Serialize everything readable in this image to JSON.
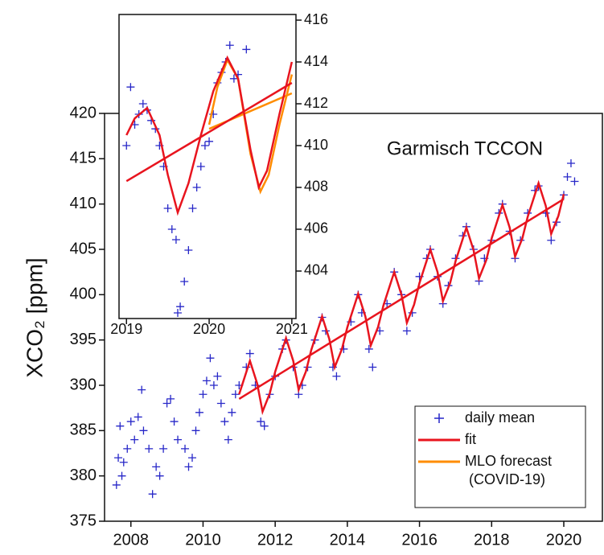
{
  "chart_data": [
    {
      "type": "scatter-line",
      "title": "Garmisch TCCON",
      "y_label": "XCO₂ [ppm]",
      "xlim": [
        2007.27,
        2021.07
      ],
      "xticks": [
        2008,
        2010,
        2012,
        2014,
        2016,
        2018,
        2020
      ],
      "ylim": [
        375,
        420
      ],
      "yticks": [
        375,
        380,
        385,
        390,
        395,
        400,
        405,
        410,
        415,
        420
      ],
      "legend": "lower right",
      "series": [
        {
          "name": "daily mean",
          "kind": "scatter",
          "color": "#2727c8",
          "x": [
            2007.6,
            2007.65,
            2007.7,
            2007.75,
            2007.8,
            2007.9,
            2008.0,
            2008.1,
            2008.2,
            2008.3,
            2008.35,
            2008.5,
            2008.6,
            2008.7,
            2008.8,
            2008.9,
            2009.0,
            2009.1,
            2009.2,
            2009.3,
            2009.5,
            2009.6,
            2009.7,
            2009.8,
            2009.9,
            2010.0,
            2010.1,
            2010.2,
            2010.3,
            2010.4,
            2010.5,
            2010.6,
            2010.7,
            2010.8,
            2010.9,
            2011.0,
            2011.2,
            2011.3,
            2011.45,
            2011.6,
            2011.7,
            2011.85,
            2012.0,
            2012.2,
            2012.3,
            2012.5,
            2012.65,
            2012.75,
            2012.9,
            2013.1,
            2013.3,
            2013.4,
            2013.6,
            2013.7,
            2013.9,
            2014.1,
            2014.3,
            2014.4,
            2014.6,
            2014.7,
            2014.9,
            2015.1,
            2015.3,
            2015.5,
            2015.65,
            2015.8,
            2016.0,
            2016.2,
            2016.3,
            2016.5,
            2016.65,
            2016.8,
            2017.0,
            2017.2,
            2017.3,
            2017.5,
            2017.65,
            2017.8,
            2018.0,
            2018.2,
            2018.3,
            2018.5,
            2018.65,
            2018.8,
            2019.0,
            2019.2,
            2019.3,
            2019.5,
            2019.65,
            2019.8,
            2020.0,
            2020.1,
            2020.2,
            2020.3
          ],
          "values": [
            379,
            382,
            385.5,
            380,
            381.5,
            383,
            386,
            384,
            386.5,
            389.5,
            385,
            383,
            378,
            381,
            380,
            383,
            388,
            388.5,
            386,
            384,
            383,
            381,
            382,
            385,
            387,
            389,
            390.5,
            393,
            390,
            391,
            388,
            386,
            384,
            387,
            389,
            390,
            392,
            393.5,
            390,
            386,
            385.5,
            389,
            391,
            394,
            395,
            392,
            389,
            390,
            392,
            395,
            397.5,
            396,
            392,
            391,
            394,
            397,
            400,
            398,
            394,
            392,
            396,
            399,
            402.5,
            400,
            396,
            398,
            402,
            404,
            405,
            402,
            399,
            401,
            404,
            406.5,
            407.5,
            405,
            401.5,
            404,
            406,
            409,
            410,
            407,
            404,
            406,
            409,
            411.5,
            412,
            409,
            406,
            408,
            411,
            413,
            414.5,
            412.5
          ]
        },
        {
          "name": "fit",
          "kind": "line",
          "color": "#e8141e",
          "x": [
            2011.0,
            2011.3,
            2011.5,
            2011.65,
            2011.85,
            2012.0,
            2012.3,
            2012.5,
            2012.65,
            2012.85,
            2013.0,
            2013.3,
            2013.5,
            2013.65,
            2013.85,
            2014.0,
            2014.3,
            2014.5,
            2014.65,
            2014.85,
            2015.0,
            2015.3,
            2015.5,
            2015.65,
            2015.85,
            2016.0,
            2016.3,
            2016.5,
            2016.65,
            2016.85,
            2017.0,
            2017.3,
            2017.5,
            2017.65,
            2017.85,
            2018.0,
            2018.3,
            2018.5,
            2018.65,
            2018.85,
            2019.0,
            2019.3,
            2019.5,
            2019.65,
            2019.85,
            2020.0
          ],
          "values": [
            389.0,
            392.7,
            390.2,
            387.1,
            389.1,
            391.5,
            395.2,
            392.7,
            389.5,
            391.5,
            393.9,
            397.6,
            395.1,
            392.0,
            394.0,
            396.4,
            400.1,
            397.6,
            394.4,
            396.4,
            398.8,
            402.5,
            400.0,
            396.9,
            398.9,
            401.3,
            405.0,
            402.5,
            399.3,
            401.3,
            403.7,
            407.4,
            404.9,
            401.8,
            403.8,
            406.2,
            409.9,
            407.4,
            404.2,
            406.2,
            408.6,
            412.3,
            409.8,
            406.7,
            408.7,
            411.1
          ]
        },
        {
          "kind": "line",
          "color": "#e8141e",
          "x": [
            2011,
            2020
          ],
          "values": [
            388.5,
            410.55
          ]
        },
        {
          "name": "MLO forecast (COVID-19)",
          "kind": "legend-only",
          "color": "#ff8c00"
        }
      ]
    },
    {
      "type": "scatter-line",
      "xlim": [
        2018.91,
        2021.05
      ],
      "xticks": [
        2019,
        2020,
        2021
      ],
      "ylim": [
        401.73,
        416.27
      ],
      "yticks": [
        404,
        406,
        408,
        410,
        412,
        414,
        416
      ],
      "series": [
        {
          "kind": "scatter",
          "color": "#2727c8",
          "x": [
            2019.0,
            2019.05,
            2019.1,
            2019.15,
            2019.2,
            2019.25,
            2019.3,
            2019.35,
            2019.4,
            2019.45,
            2019.5,
            2019.55,
            2019.6,
            2019.62,
            2019.65,
            2019.7,
            2019.75,
            2019.8,
            2019.85,
            2019.9,
            2019.95,
            2020.0,
            2020.05,
            2020.1,
            2020.15,
            2020.2,
            2020.25,
            2020.3,
            2020.35,
            2020.45
          ],
          "values": [
            410,
            412.8,
            411,
            411.5,
            412,
            411.7,
            411.2,
            410.8,
            410,
            409,
            407,
            406,
            405.5,
            402,
            402.3,
            403.5,
            405,
            407,
            408,
            409,
            410,
            410.2,
            411.5,
            413,
            413.5,
            414,
            414.8,
            413.2,
            413.4,
            414.6
          ]
        },
        {
          "kind": "line",
          "color": "#ff8c00",
          "x": [
            2020.0,
            2020.1,
            2020.22,
            2020.35,
            2020.5,
            2020.62,
            2020.72,
            2020.85,
            2021.0
          ],
          "values": [
            411,
            412.8,
            414.1,
            413.2,
            409.6,
            407.8,
            408.6,
            411.0,
            413.4
          ]
        },
        {
          "kind": "line",
          "color": "#ff8c00",
          "x": [
            2020,
            2021
          ],
          "values": [
            410.8,
            412.5
          ]
        },
        {
          "kind": "line",
          "color": "#e8141e",
          "x": [
            2019.0,
            2019.1,
            2019.25,
            2019.4,
            2019.5,
            2019.62,
            2019.75,
            2019.9,
            2020.05,
            2020.22,
            2020.35,
            2020.5,
            2020.6,
            2020.7,
            2020.85,
            2021.0
          ],
          "values": [
            410.5,
            411.3,
            411.8,
            410.5,
            408.6,
            406.8,
            408.2,
            410.5,
            412.6,
            414.2,
            413.2,
            409.8,
            408.0,
            408.8,
            411.5,
            414.0
          ]
        },
        {
          "kind": "line",
          "color": "#e8141e",
          "x": [
            2019,
            2021
          ],
          "values": [
            408.3,
            413.0
          ]
        }
      ]
    }
  ]
}
